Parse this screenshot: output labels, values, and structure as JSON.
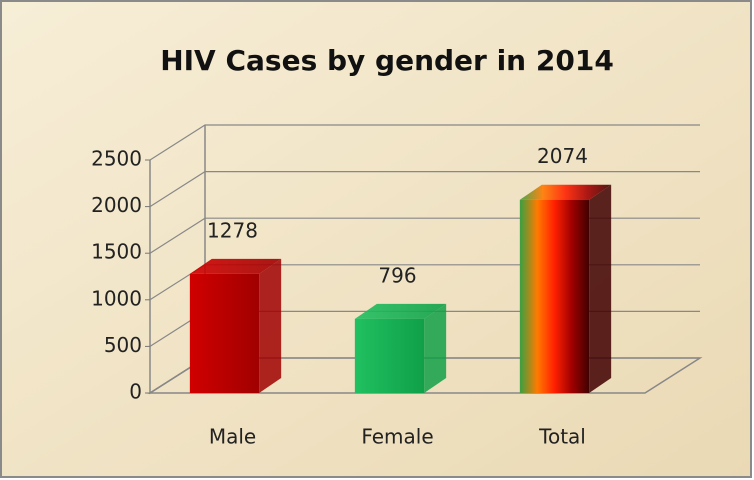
{
  "chart_data": {
    "type": "bar3d",
    "title": "HIV Cases by gender in 2014",
    "categories": [
      "Male",
      "Female",
      "Total"
    ],
    "values": [
      1278,
      796,
      2074
    ],
    "colors": [
      [
        "#d00000",
        "#a00000"
      ],
      [
        "#20c060",
        "#10a048"
      ],
      [
        "#3aa040",
        "#ff7a00",
        "#ff2000",
        "#a00000",
        "#400000"
      ]
    ],
    "ylim": [
      0,
      2500
    ],
    "yticks": [
      0,
      500,
      1000,
      1500,
      2000,
      2500
    ],
    "grid": true
  }
}
